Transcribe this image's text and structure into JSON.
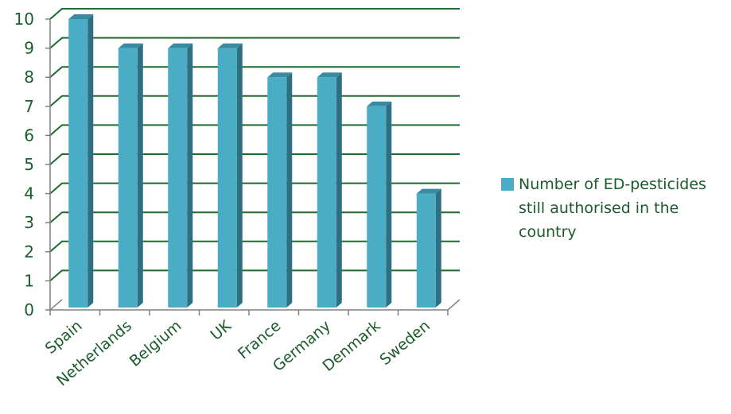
{
  "chart_data": {
    "type": "bar",
    "categories": [
      "Spain",
      "Netherlands",
      "Belgium",
      "UK",
      "France",
      "Germany",
      "Denmark",
      "Sweden"
    ],
    "series": [
      {
        "name": "Number of ED-pesticides still authorised in the country",
        "values": [
          10,
          9,
          9,
          9,
          8,
          8,
          7,
          4
        ]
      }
    ],
    "ylim": [
      0,
      10
    ],
    "yticks": [
      0,
      1,
      2,
      3,
      4,
      5,
      6,
      7,
      8,
      9,
      10
    ],
    "grid": true,
    "legend_position": "right",
    "style": "3d-column"
  },
  "colors": {
    "bar_front": "#4bacc6",
    "bar_side": "#2e6f81",
    "bar_top": "#3a8ba2",
    "grid": "#1e6b2e",
    "axis": "#808080",
    "text": "#1a5c2a"
  }
}
